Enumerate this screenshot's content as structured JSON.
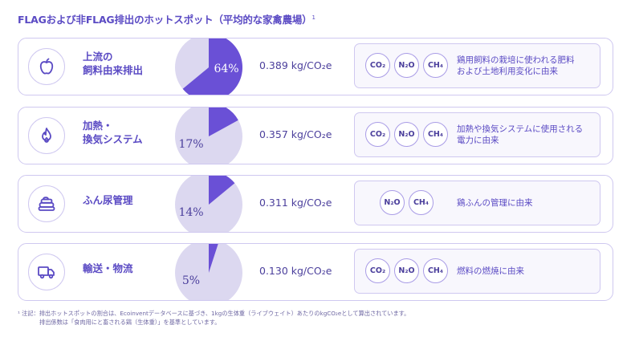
{
  "title": "FLAGおよび非FLAG排出のホットスポット（平均的な家禽農場）",
  "title_note": "1",
  "rows": [
    {
      "label_lines": [
        "上流の",
        "飼料由来排出"
      ],
      "icon": "apple-icon",
      "share": 0.64,
      "percent": "64%",
      "value": "0.389 kg/CO₂e",
      "gases": [
        "CO₂",
        "N₂O",
        "CH₄"
      ],
      "desc_lines": [
        "鶏用飼料の栽培に使われる肥料",
        "および土地利用変化に由来"
      ]
    },
    {
      "label_lines": [
        "加熱・",
        "換気システム"
      ],
      "icon": "flame-icon",
      "share": 0.17,
      "percent": "17%",
      "value": "0.357 kg/CO₂e",
      "gases": [
        "CO₂",
        "N₂O",
        "CH₄"
      ],
      "desc_lines": [
        "加熱や換気システムに使用される",
        "電力に由来"
      ]
    },
    {
      "label_lines": [
        "ふん尿管理"
      ],
      "icon": "manure-icon",
      "share": 0.14,
      "percent": "14%",
      "value": "0.311 kg/CO₂e",
      "gases": [
        "N₂O",
        "CH₄"
      ],
      "desc_lines": [
        "鶏ふんの管理に由来"
      ]
    },
    {
      "label_lines": [
        "輸送・物流"
      ],
      "icon": "truck-icon",
      "share": 0.05,
      "percent": "5%",
      "value": "0.130 kg/CO₂e",
      "gases": [
        "CO₂",
        "N₂O",
        "CH₄"
      ],
      "desc_lines": [
        "燃料の燃焼に由来"
      ]
    }
  ],
  "footnote_lines": [
    "¹ 注記：排出ホットスポットの割合は、Ecoinventデータベースに基づき、1kgの生体重（ライブウェイト）あたりのkgCO₂eとして算出されています。",
    "排出係数は「食肉用にと畜される鶏（生体重）」を基準としています。"
  ],
  "colors": {
    "accent": "#6a50d6",
    "pie_light": "#dcd8f0",
    "border": "#cfc8f0"
  }
}
